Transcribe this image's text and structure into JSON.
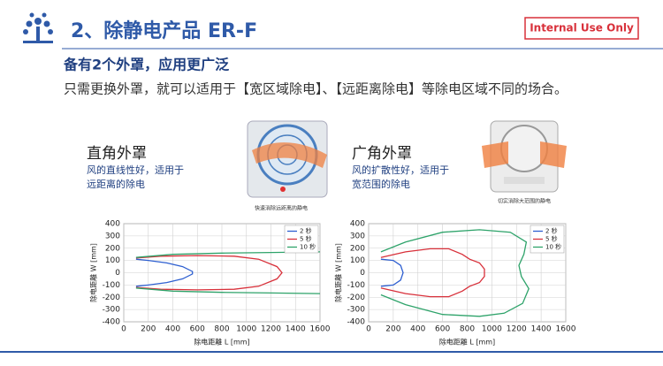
{
  "header": {
    "title": "2、除静电产品 ER-F",
    "badge": "Internal Use Only",
    "subtitle": "备有2个外罩，应用更广泛",
    "description": "只需更换外罩，就可以适用于【宽区域除电】、【远距离除电】等除电区域不同的场合。"
  },
  "sections": [
    {
      "heading": "直角外罩",
      "lines": [
        "风的直线性好，适用于",
        "远距离的除电"
      ],
      "caption": "快速消除远距离的静电"
    },
    {
      "heading": "广角外罩",
      "lines": [
        "风的扩散性好，适用于",
        "宽范围的除电"
      ],
      "caption": "切实消除大范围的静电"
    }
  ],
  "chart_data": [
    {
      "type": "line",
      "x_label": "除电距離 L [mm]",
      "y_label": "除电距離 W [mm]",
      "xlim": [
        0,
        1600
      ],
      "xticks": [
        0,
        200,
        400,
        600,
        800,
        1000,
        1200,
        1400,
        1600
      ],
      "ylim": [
        -400,
        400
      ],
      "yticks": [
        -400,
        -300,
        -200,
        -100,
        0,
        100,
        200,
        300,
        400
      ],
      "grid": true,
      "legend": "upper right",
      "series": [
        {
          "name": "2 秒",
          "color": "#2e5fd0",
          "x": [
            100,
            200,
            350,
            480,
            560,
            560,
            480,
            350,
            200,
            100
          ],
          "values": [
            110,
            100,
            80,
            50,
            10,
            -10,
            -50,
            -80,
            -100,
            -110
          ]
        },
        {
          "name": "5 秒",
          "color": "#d8303a",
          "x": [
            100,
            300,
            600,
            900,
            1100,
            1250,
            1290,
            1250,
            1100,
            900,
            600,
            300,
            100
          ],
          "values": [
            120,
            135,
            140,
            135,
            110,
            50,
            0,
            -50,
            -110,
            -135,
            -140,
            -135,
            -120
          ]
        },
        {
          "name": "10 秒",
          "color": "#2ea36a",
          "x": [
            1600,
            1200,
            800,
            400,
            100,
            100,
            100,
            400,
            800,
            1200,
            1600
          ],
          "values": [
            170,
            165,
            160,
            150,
            125,
            null,
            -125,
            -150,
            -160,
            -165,
            -170
          ]
        }
      ]
    },
    {
      "type": "line",
      "x_label": "除电距離 L [mm]",
      "y_label": "除电距離 W [mm]",
      "xlim": [
        0,
        1600
      ],
      "xticks": [
        0,
        200,
        400,
        600,
        800,
        1000,
        1200,
        1400,
        1600
      ],
      "ylim": [
        -400,
        400
      ],
      "yticks": [
        -400,
        -300,
        -200,
        -100,
        0,
        100,
        200,
        300,
        400
      ],
      "grid": true,
      "legend": "upper right",
      "series": [
        {
          "name": "2 秒",
          "color": "#2e5fd0",
          "x": [
            100,
            200,
            260,
            280,
            260,
            200,
            100
          ],
          "values": [
            110,
            100,
            60,
            0,
            -60,
            -100,
            -110
          ]
        },
        {
          "name": "5 秒",
          "color": "#d8303a",
          "x": [
            100,
            300,
            500,
            650,
            760,
            820,
            900,
            940,
            940,
            900,
            820,
            760,
            650,
            500,
            300,
            100
          ],
          "values": [
            125,
            170,
            195,
            195,
            150,
            110,
            80,
            30,
            -30,
            -80,
            -110,
            -150,
            -195,
            -195,
            -170,
            -125
          ]
        },
        {
          "name": "10 秒",
          "color": "#2ea36a",
          "x": [
            100,
            300,
            600,
            900,
            1150,
            1280,
            1260,
            1220,
            1240,
            1300,
            1250,
            1100,
            900,
            600,
            300,
            100
          ],
          "values": [
            170,
            250,
            330,
            350,
            330,
            250,
            150,
            60,
            -30,
            -130,
            -250,
            -330,
            -355,
            -340,
            -260,
            -180
          ]
        }
      ]
    }
  ]
}
